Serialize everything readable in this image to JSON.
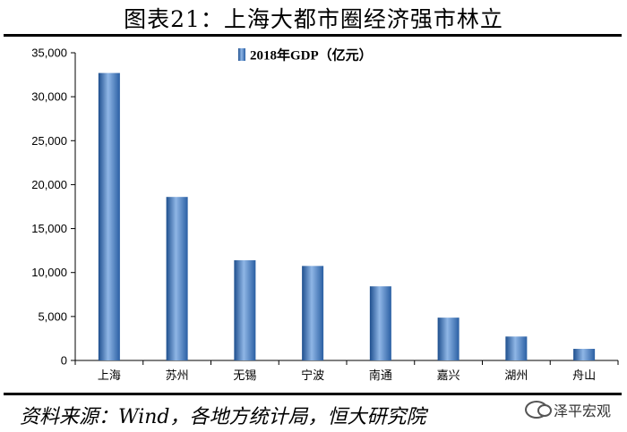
{
  "header": {
    "title": "图表21：上海大都市圈经济强市林立"
  },
  "footer": {
    "source": "资料来源：Wind，各地方统计局，恒大研究院",
    "watermark": "泽平宏观",
    "watermark_icon": "wechat-icon"
  },
  "chart_data": {
    "type": "bar",
    "categories": [
      "上海",
      "苏州",
      "无锡",
      "宁波",
      "南通",
      "嘉兴",
      "湖州",
      "舟山"
    ],
    "series": [
      {
        "name": "2018年GDP（亿元）",
        "values": [
          32700,
          18600,
          11400,
          10750,
          8430,
          4870,
          2720,
          1320
        ]
      }
    ],
    "ylim": [
      0,
      35000
    ],
    "yticks": [
      0,
      5000,
      10000,
      15000,
      20000,
      25000,
      30000,
      35000
    ],
    "ytick_labels": [
      "0",
      "5,000",
      "10,000",
      "15,000",
      "20,000",
      "25,000",
      "30,000",
      "35,000"
    ],
    "grid": false,
    "legend_position": "top-center",
    "bar_color": "#3d78c0"
  }
}
